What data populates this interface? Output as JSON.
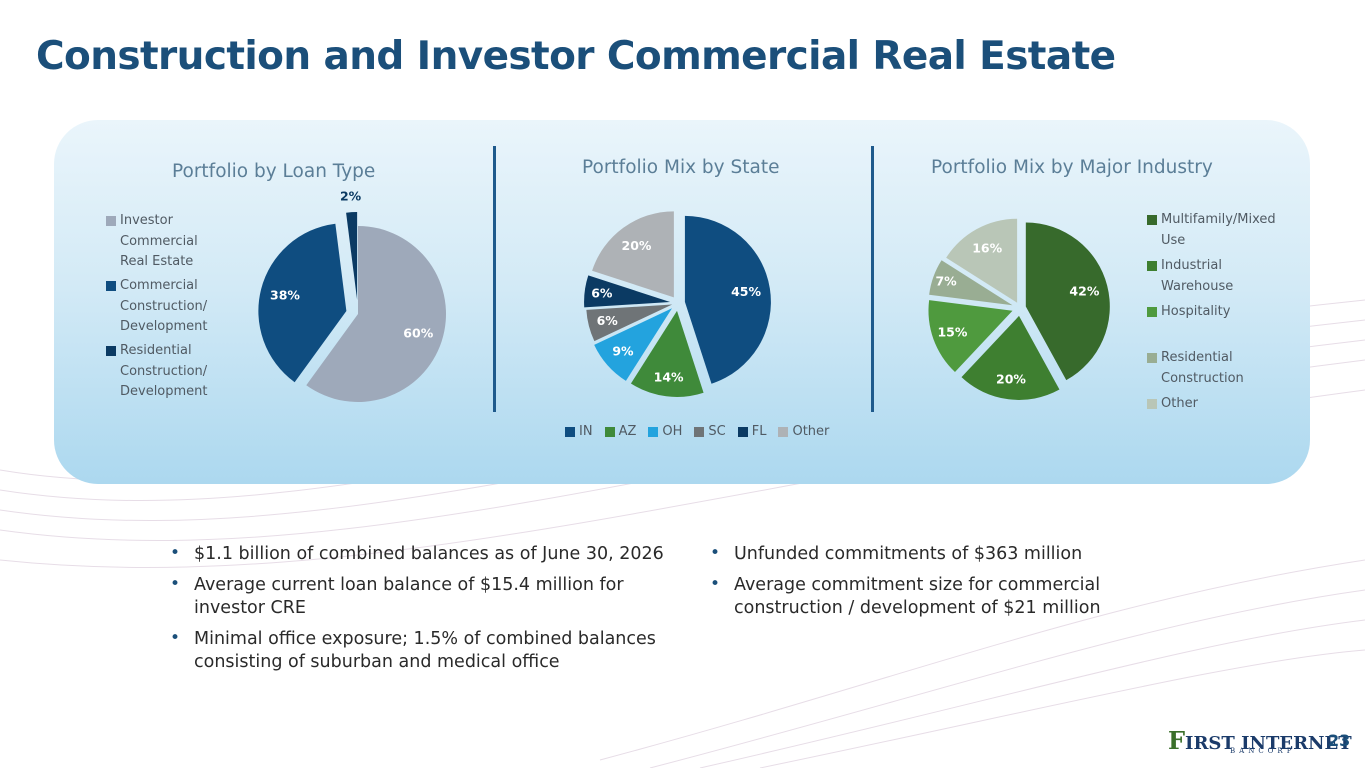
{
  "title": "Construction and Investor Commercial Real Estate",
  "page_number": "23",
  "logo": {
    "main": "FIRST INTERNET",
    "big_letter": "F",
    "rest": "IRST INTERNET",
    "sub": "BANCORP"
  },
  "bullets_left": [
    "$1.1 billion of combined balances as of June 30, 2026",
    "Average current loan balance of $15.4 million for investor CRE",
    "Minimal office exposure; 1.5% of combined balances consisting of suburban and medical office"
  ],
  "bullets_right": [
    "Unfunded commitments of $363 million",
    "Average commitment size for commercial construction / development of $21 million"
  ],
  "chart_data": [
    {
      "type": "pie",
      "title": "Portfolio by Loan Type",
      "legend_position": "left",
      "labels": [
        "Investor Commercial Real Estate",
        "Commercial Construction/ Development",
        "Residential Construction/ Development"
      ],
      "legend_lines": [
        [
          "Investor",
          "Commercial",
          "Real Estate"
        ],
        [
          "Commercial",
          "Construction/",
          "Development"
        ],
        [
          "Residential",
          "Construction/",
          "Development"
        ]
      ],
      "values": [
        60,
        38,
        2
      ],
      "data_labels": [
        "60%",
        "38%",
        "2%"
      ],
      "colors": [
        "#9ea9ba",
        "#0f4d80",
        "#0b3a63"
      ]
    },
    {
      "type": "pie",
      "title": "Portfolio Mix by State",
      "legend_position": "bottom",
      "labels": [
        "IN",
        "AZ",
        "OH",
        "SC",
        "FL",
        "Other"
      ],
      "values": [
        45,
        14,
        9,
        6,
        6,
        20
      ],
      "data_labels": [
        "45%",
        "14%",
        "9%",
        "6%",
        "6%",
        "20%"
      ],
      "colors": [
        "#0f4d80",
        "#3f8a3a",
        "#23a3de",
        "#6f7477",
        "#0b3a63",
        "#aeb2b6"
      ]
    },
    {
      "type": "pie",
      "title": "Portfolio Mix by Major Industry",
      "legend_position": "right",
      "labels": [
        "Multifamily/Mixed Use",
        "Industrial Warehouse",
        "Hospitality",
        "Residential Construction",
        "Other"
      ],
      "legend_lines": [
        [
          "Multifamily/Mixed",
          "Use"
        ],
        [
          "Industrial",
          "Warehouse"
        ],
        [
          "Hospitality"
        ],
        [
          "Residential",
          "Construction"
        ],
        [
          "Other"
        ]
      ],
      "values": [
        42,
        20,
        15,
        7,
        16
      ],
      "data_labels": [
        "42%",
        "20%",
        "15%",
        "7%",
        "16%"
      ],
      "colors": [
        "#376a2c",
        "#3e7f30",
        "#4f9a3e",
        "#99ad93",
        "#b9c6b7"
      ]
    }
  ]
}
